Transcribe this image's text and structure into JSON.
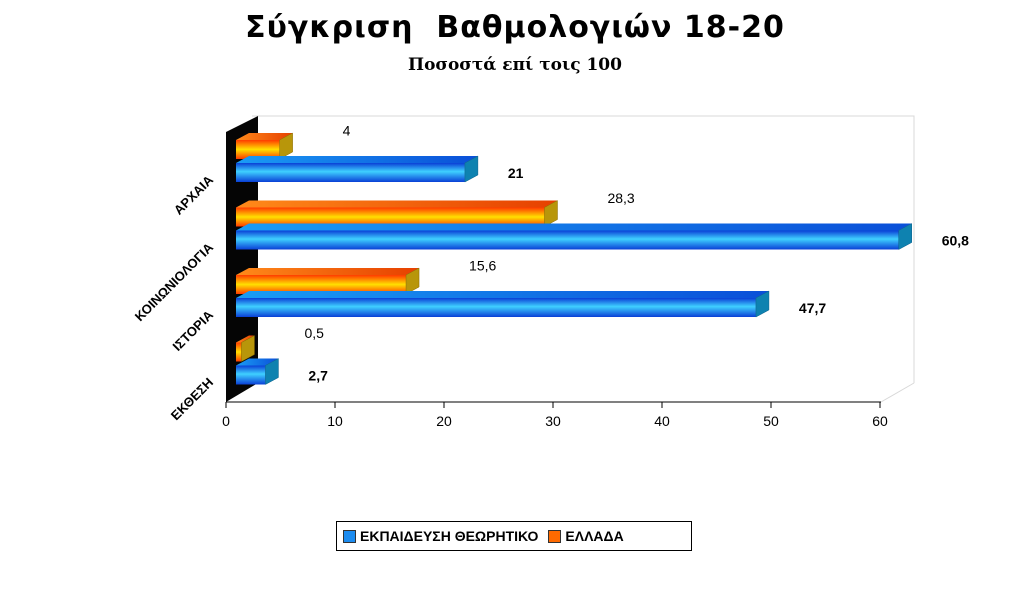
{
  "chart_data": {
    "type": "bar",
    "orientation": "horizontal",
    "title": "Σύγκριση  Βαθμολογιών 18-20",
    "subtitle": "Ποσοστά επί τοις 100",
    "categories": [
      "ΑΡΧΑΙΑ",
      "ΚΟΙΝΩΝΙΟΛΟΓΙΑ",
      "ΙΣΤΟΡΙΑ",
      "ΕΚΘΕΣΗ"
    ],
    "series": [
      {
        "name": "ΕΚΠΑΙΔΕΥΣΗ ΘΕΩΡΗΤΙΚΟ",
        "values": [
          21,
          60.8,
          47.7,
          2.7
        ],
        "labels": [
          "21",
          "60,8",
          "47,7",
          "2,7"
        ],
        "color": "#1c8cf0"
      },
      {
        "name": "ΕΛΛΑΔΑ",
        "values": [
          4,
          28.3,
          15.6,
          0.5
        ],
        "labels": [
          "4",
          "28,3",
          "15,6",
          "0,5"
        ],
        "color": "#ff6a00"
      }
    ],
    "xlim": [
      0,
      60
    ],
    "xticks": [
      "0",
      "10",
      "20",
      "30",
      "40",
      "50",
      "60"
    ],
    "grid": false,
    "legend": "bottom",
    "style": "3d"
  }
}
